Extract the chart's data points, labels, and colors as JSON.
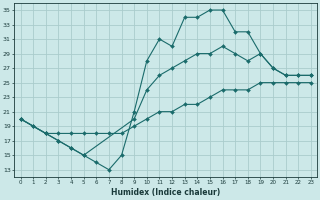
{
  "xlabel": "Humidex (Indice chaleur)",
  "background_color": "#cce8e8",
  "grid_color": "#aacccc",
  "line_color": "#1a6b6b",
  "xlim": [
    -0.5,
    23.5
  ],
  "ylim": [
    12,
    36
  ],
  "yticks": [
    13,
    15,
    17,
    19,
    21,
    23,
    25,
    27,
    29,
    31,
    33,
    35
  ],
  "xticks": [
    0,
    1,
    2,
    3,
    4,
    5,
    6,
    7,
    8,
    9,
    10,
    11,
    12,
    13,
    14,
    15,
    16,
    17,
    18,
    19,
    20,
    21,
    22,
    23
  ],
  "line1_x": [
    0,
    1,
    2,
    3,
    4,
    5,
    6,
    7,
    8,
    9,
    10,
    11,
    12,
    13,
    14,
    15,
    16,
    17,
    18,
    19,
    20,
    21,
    22,
    23
  ],
  "line1_y": [
    20,
    19,
    18,
    17,
    16,
    15,
    14,
    13,
    15,
    21,
    28,
    31,
    30,
    34,
    34,
    35,
    35,
    32,
    32,
    29,
    27,
    26,
    26,
    26
  ],
  "line2_x": [
    0,
    2,
    3,
    4,
    5,
    9,
    10,
    11,
    12,
    13,
    14,
    15,
    16,
    17,
    18,
    19,
    20,
    21,
    22,
    23
  ],
  "line2_y": [
    20,
    18,
    17,
    16,
    15,
    20,
    24,
    26,
    27,
    28,
    29,
    29,
    30,
    29,
    28,
    29,
    27,
    26,
    26,
    26
  ],
  "line3_x": [
    0,
    1,
    2,
    3,
    4,
    5,
    6,
    7,
    8,
    9,
    10,
    11,
    12,
    13,
    14,
    15,
    16,
    17,
    18,
    19,
    20,
    21,
    22,
    23
  ],
  "line3_y": [
    20,
    19,
    18,
    18,
    18,
    18,
    18,
    18,
    18,
    19,
    20,
    21,
    21,
    22,
    22,
    23,
    24,
    24,
    24,
    25,
    25,
    25,
    25,
    25
  ]
}
